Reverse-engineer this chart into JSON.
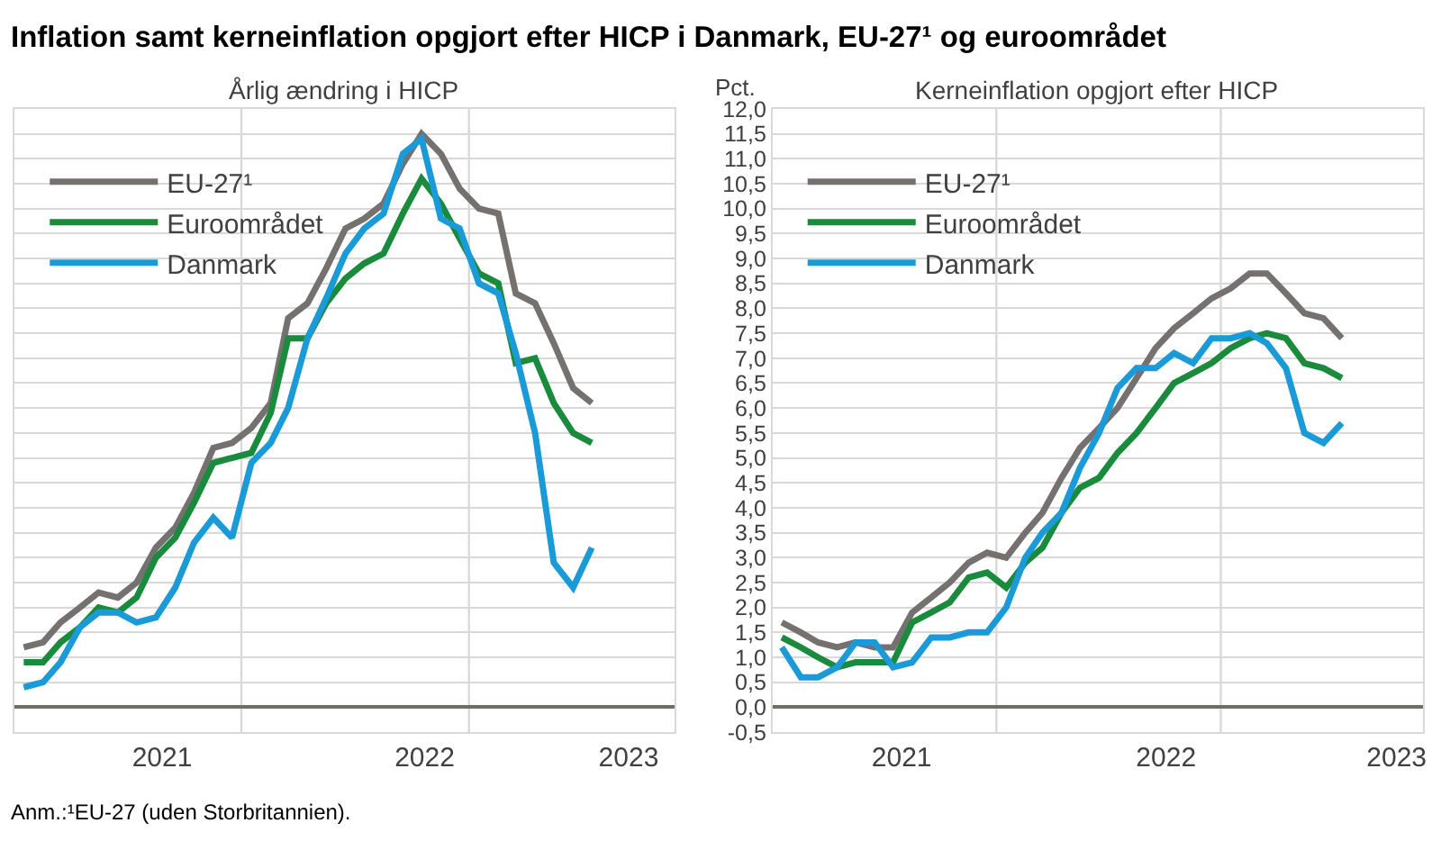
{
  "chart_data": [
    {
      "type": "line",
      "title": "Inflation samt kerneinflation opgjort efter HICP i Danmark, EU-27¹ og euroområdet",
      "subtitle": "Årlig ændring i HICP",
      "annotations": [
        "Anm.:¹EU-27 (uden Storbritannien)."
      ],
      "x": [
        "2021-01",
        "2021-02",
        "2021-03",
        "2021-04",
        "2021-05",
        "2021-06",
        "2021-07",
        "2021-08",
        "2021-09",
        "2021-10",
        "2021-11",
        "2021-12",
        "2022-01",
        "2022-02",
        "2022-03",
        "2022-04",
        "2022-05",
        "2022-06",
        "2022-07",
        "2022-08",
        "2022-09",
        "2022-10",
        "2022-11",
        "2022-12",
        "2023-01",
        "2023-02",
        "2023-03",
        "2023-04",
        "2023-05",
        "2023-06",
        "2023-07"
      ],
      "series": [
        {
          "name": "EU-27¹",
          "color": "#767171",
          "values": [
            1.2,
            1.3,
            1.7,
            2.0,
            2.3,
            2.2,
            2.5,
            3.2,
            3.6,
            4.3,
            5.2,
            5.3,
            5.6,
            6.1,
            7.8,
            8.1,
            8.8,
            9.6,
            9.8,
            10.1,
            10.9,
            11.5,
            11.1,
            10.4,
            10.0,
            9.9,
            8.3,
            8.1,
            7.3,
            6.4,
            6.1
          ]
        },
        {
          "name": "Euroområdet",
          "color": "#1a8a3c",
          "values": [
            0.9,
            0.9,
            1.3,
            1.6,
            2.0,
            1.9,
            2.2,
            3.0,
            3.4,
            4.1,
            4.9,
            5.0,
            5.1,
            5.9,
            7.4,
            7.4,
            8.1,
            8.6,
            8.9,
            9.1,
            9.9,
            10.6,
            10.1,
            9.4,
            8.7,
            8.5,
            6.9,
            7.0,
            6.1,
            5.5,
            5.3
          ]
        },
        {
          "name": "Danmark",
          "color": "#1a9ad6",
          "values": [
            0.4,
            0.5,
            0.9,
            1.6,
            1.9,
            1.9,
            1.7,
            1.8,
            2.4,
            3.3,
            3.8,
            3.4,
            4.9,
            5.3,
            6.0,
            7.4,
            8.2,
            9.1,
            9.6,
            9.9,
            11.1,
            11.4,
            9.8,
            9.6,
            8.5,
            8.3,
            7.1,
            5.5,
            2.9,
            2.4,
            3.2
          ]
        }
      ],
      "xlim": [
        "2020-12-17",
        "2023-11-10"
      ],
      "xticks": [
        {
          "value": "2021-08-11",
          "label": "2021"
        },
        {
          "value": "2022-10-06",
          "label": "2022"
        },
        {
          "value": "2023-08-29",
          "label": "2023"
        }
      ],
      "ylim": [
        -0.5,
        12
      ],
      "yticks": [
        {
          "value": -0.5,
          "label": null
        },
        {
          "value": 0,
          "label": null
        },
        {
          "value": 0.5,
          "label": null
        },
        {
          "value": 1,
          "label": null
        },
        {
          "value": 1.5,
          "label": null
        },
        {
          "value": 2,
          "label": null
        },
        {
          "value": 2.5,
          "label": null
        },
        {
          "value": 3,
          "label": null
        },
        {
          "value": 3.5,
          "label": null
        },
        {
          "value": 4,
          "label": null
        },
        {
          "value": 4.5,
          "label": null
        },
        {
          "value": 5,
          "label": null
        },
        {
          "value": 5.5,
          "label": null
        },
        {
          "value": 6,
          "label": null
        },
        {
          "value": 6.5,
          "label": null
        },
        {
          "value": 7,
          "label": null
        },
        {
          "value": 7.5,
          "label": null
        },
        {
          "value": 8,
          "label": null
        },
        {
          "value": 8.5,
          "label": null
        },
        {
          "value": 9,
          "label": null
        },
        {
          "value": 9.5,
          "label": null
        },
        {
          "value": 10,
          "label": null
        },
        {
          "value": 10.5,
          "label": null
        },
        {
          "value": 11,
          "label": null
        },
        {
          "value": 11.5,
          "label": null
        },
        {
          "value": 12,
          "label": null
        }
      ],
      "tick_labels": "x",
      "grid": "y",
      "legend": "top left",
      "marker": "none",
      "line_style": "solid",
      "ref_lines": [
        {
          "axis": "x",
          "value": "2021-12-16",
          "color": "#d9d9d9"
        },
        {
          "axis": "x",
          "value": "2022-12-16",
          "color": "#d9d9d9"
        }
      ]
    },
    {
      "type": "line",
      "subtitle": "Kerneinflation opgjort efter HICP",
      "ylabel": "Pct.",
      "x": [
        "2021-01",
        "2021-02",
        "2021-03",
        "2021-04",
        "2021-05",
        "2021-06",
        "2021-07",
        "2021-08",
        "2021-09",
        "2021-10",
        "2021-11",
        "2021-12",
        "2022-01",
        "2022-02",
        "2022-03",
        "2022-04",
        "2022-05",
        "2022-06",
        "2022-07",
        "2022-08",
        "2022-09",
        "2022-10",
        "2022-11",
        "2022-12",
        "2023-01",
        "2023-02",
        "2023-03",
        "2023-04",
        "2023-05",
        "2023-06",
        "2023-07"
      ],
      "series": [
        {
          "name": "EU-27¹",
          "color": "#767171",
          "values": [
            1.7,
            1.5,
            1.3,
            1.2,
            1.3,
            1.2,
            1.2,
            1.9,
            2.2,
            2.5,
            2.9,
            3.1,
            3.0,
            3.5,
            3.9,
            4.6,
            5.2,
            5.6,
            6.0,
            6.6,
            7.2,
            7.6,
            7.9,
            8.2,
            8.4,
            8.7,
            8.7,
            8.3,
            7.9,
            7.8,
            7.4
          ]
        },
        {
          "name": "Euroområdet",
          "color": "#1a8a3c",
          "values": [
            1.4,
            1.2,
            1.0,
            0.8,
            0.9,
            0.9,
            0.9,
            1.7,
            1.9,
            2.1,
            2.6,
            2.7,
            2.4,
            2.9,
            3.2,
            3.9,
            4.4,
            4.6,
            5.1,
            5.5,
            6.0,
            6.5,
            6.7,
            6.9,
            7.2,
            7.4,
            7.5,
            7.4,
            6.9,
            6.8,
            6.6
          ]
        },
        {
          "name": "Danmark",
          "color": "#1a9ad6",
          "values": [
            1.2,
            0.6,
            0.6,
            0.8,
            1.3,
            1.3,
            0.8,
            0.9,
            1.4,
            1.4,
            1.5,
            1.5,
            2.0,
            3.0,
            3.5,
            3.9,
            4.8,
            5.5,
            6.4,
            6.8,
            6.8,
            7.1,
            6.9,
            7.4,
            7.4,
            7.5,
            7.3,
            6.8,
            5.5,
            5.3,
            5.7
          ]
        }
      ],
      "xlim": [
        "2020-12-17",
        "2023-11-10"
      ],
      "xticks": [
        {
          "value": "2021-07-15",
          "label": "2021"
        },
        {
          "value": "2022-09-18",
          "label": "2022"
        },
        {
          "value": "2023-09-28",
          "label": "2023"
        }
      ],
      "ylim": [
        -0.5,
        12
      ],
      "yticks": [
        {
          "value": -0.5,
          "label": "-0,5"
        },
        {
          "value": 0,
          "label": "0,0"
        },
        {
          "value": 0.5,
          "label": "0,5"
        },
        {
          "value": 1,
          "label": "1,0"
        },
        {
          "value": 1.5,
          "label": "1,5"
        },
        {
          "value": 2,
          "label": "2,0"
        },
        {
          "value": 2.5,
          "label": "2,5"
        },
        {
          "value": 3,
          "label": "3,0"
        },
        {
          "value": 3.5,
          "label": "3,5"
        },
        {
          "value": 4,
          "label": "4,0"
        },
        {
          "value": 4.5,
          "label": "4,5"
        },
        {
          "value": 5,
          "label": "5,0"
        },
        {
          "value": 5.5,
          "label": "5,5"
        },
        {
          "value": 6,
          "label": "6,0"
        },
        {
          "value": 6.5,
          "label": "6,5"
        },
        {
          "value": 7,
          "label": "7,0"
        },
        {
          "value": 7.5,
          "label": "7,5"
        },
        {
          "value": 8,
          "label": "8,0"
        },
        {
          "value": 8.5,
          "label": "8,5"
        },
        {
          "value": 9,
          "label": "9,0"
        },
        {
          "value": 9.5,
          "label": "9,5"
        },
        {
          "value": 10,
          "label": "10,0"
        },
        {
          "value": 10.5,
          "label": "10,5"
        },
        {
          "value": 11,
          "label": "11,0"
        },
        {
          "value": 11.5,
          "label": "11,5"
        },
        {
          "value": 12,
          "label": "12,0"
        }
      ],
      "grid": "y",
      "legend": "top left",
      "marker": "none",
      "line_style": "solid",
      "ref_lines": [
        {
          "axis": "x",
          "value": "2021-12-16",
          "color": "#d9d9d9"
        },
        {
          "axis": "x",
          "value": "2022-12-16",
          "color": "#d9d9d9"
        }
      ]
    }
  ]
}
